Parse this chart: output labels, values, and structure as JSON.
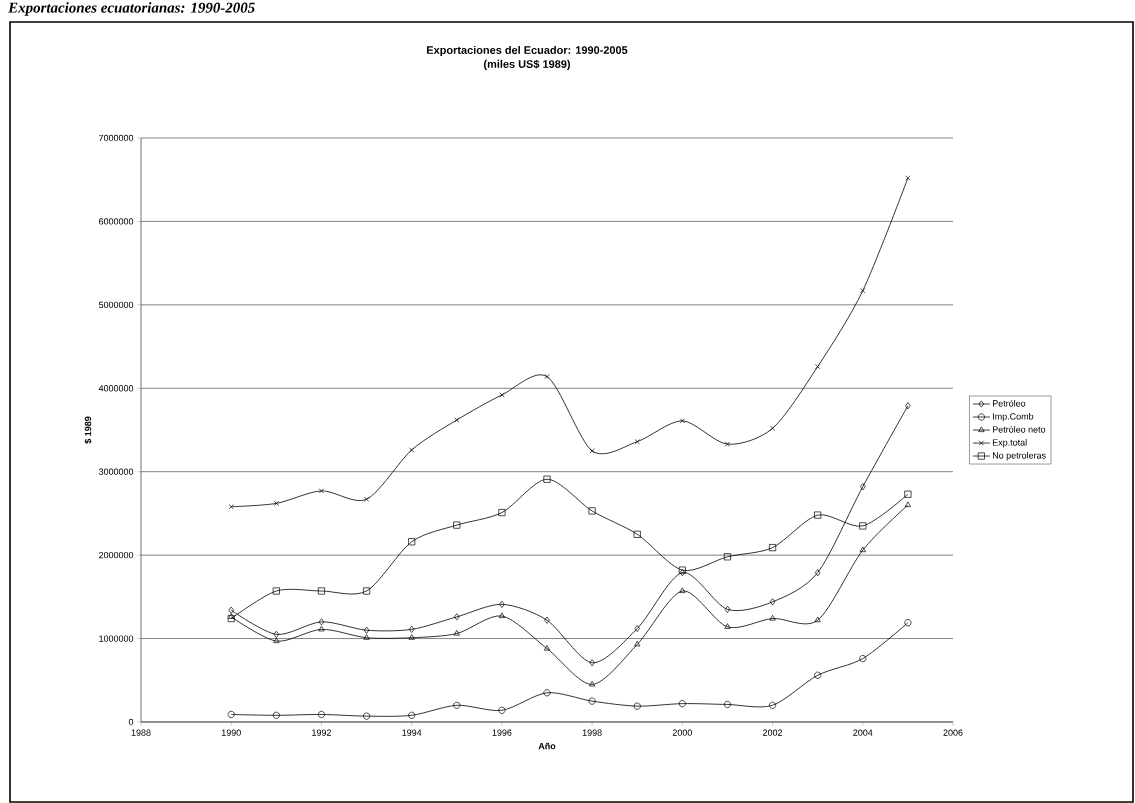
{
  "chart_data": {
    "type": "line",
    "title": "Exportaciones del Ecuador: 1990-2005",
    "subtitle": "(miles  US$ 1989)",
    "xlabel": "Año",
    "ylabel": "$ 1989",
    "annotations": [
      "Exportaciones ecuatorianas: 1990-2005"
    ],
    "x": [
      1990,
      1991,
      1992,
      1993,
      1994,
      1995,
      1996,
      1997,
      1998,
      1999,
      2000,
      2001,
      2002,
      2003,
      2004,
      2005
    ],
    "series": [
      {
        "name": "Petróleo",
        "color": "#000000",
        "marker": "diamond",
        "values": [
          1340000,
          1050000,
          1200000,
          1100000,
          1110000,
          1260000,
          1410000,
          1220000,
          710000,
          1120000,
          1790000,
          1350000,
          1440000,
          1790000,
          2820000,
          3790000
        ]
      },
      {
        "name": "Imp.Comb",
        "color": "#000000",
        "marker": "circle",
        "values": [
          90000,
          80000,
          90000,
          70000,
          80000,
          200000,
          140000,
          350000,
          250000,
          190000,
          220000,
          210000,
          200000,
          560000,
          760000,
          1190000
        ]
      },
      {
        "name": "Petróleo neto",
        "color": "#000000",
        "marker": "triangle",
        "values": [
          1260000,
          970000,
          1110000,
          1010000,
          1010000,
          1060000,
          1270000,
          880000,
          450000,
          930000,
          1570000,
          1140000,
          1240000,
          1220000,
          2060000,
          2600000
        ]
      },
      {
        "name": "Exp.total",
        "color": "#000000",
        "marker": "cross",
        "values": [
          2580000,
          2620000,
          2770000,
          2670000,
          3260000,
          3620000,
          3920000,
          4140000,
          3250000,
          3360000,
          3610000,
          3330000,
          3520000,
          4260000,
          5170000,
          6520000
        ]
      },
      {
        "name": "No petroleras",
        "color": "#000000",
        "marker": "square",
        "values": [
          1240000,
          1570000,
          1570000,
          1570000,
          2160000,
          2360000,
          2510000,
          2910000,
          2530000,
          2250000,
          1820000,
          1980000,
          2090000,
          2480000,
          2350000,
          2730000
        ]
      }
    ],
    "xlim": [
      1988,
      2006
    ],
    "xticks": [
      1988,
      1990,
      1992,
      1994,
      1996,
      1998,
      2000,
      2002,
      2004,
      2006
    ],
    "ylim": [
      0,
      7000000
    ],
    "yticks": [
      0,
      1000000,
      2000000,
      3000000,
      4000000,
      5000000,
      6000000,
      7000000
    ],
    "grid": "y",
    "legend": "right",
    "line_style": "solid"
  }
}
